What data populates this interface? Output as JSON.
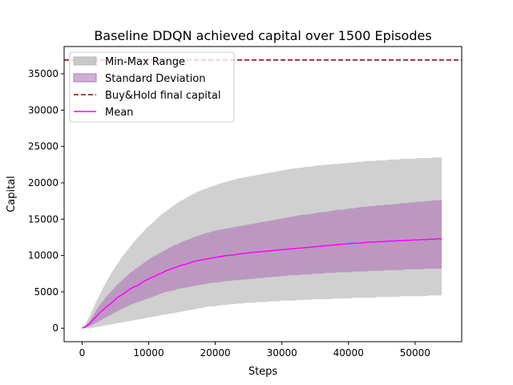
{
  "chart_data": {
    "type": "area",
    "title": "Baseline DDQN achieved capital over 1500 Episodes",
    "xlabel": "Steps",
    "ylabel": "Capital",
    "xlim": [
      -2700,
      57000
    ],
    "ylim": [
      -1850,
      38750
    ],
    "xticks": [
      0,
      10000,
      20000,
      30000,
      40000,
      50000
    ],
    "yticks": [
      0,
      5000,
      10000,
      15000,
      20000,
      25000,
      30000,
      35000
    ],
    "grid": false,
    "legend_position": "top-left",
    "colors": {
      "minmax": "#c8c8c8",
      "std": "#b07ab8",
      "mean": "#ff00ff",
      "buyhold": "#8b0000"
    },
    "buy_hold_final_capital": 36900,
    "x_step": 600,
    "series": [
      {
        "name": "Mean",
        "x_start": 0,
        "values": [
          0,
          250,
          700,
          1300,
          1900,
          2400,
          2900,
          3300,
          3800,
          4300,
          4600,
          5000,
          5400,
          5700,
          5900,
          6300,
          6600,
          6900,
          7100,
          7400,
          7600,
          7900,
          8100,
          8300,
          8500,
          8700,
          8800,
          9000,
          9200,
          9300,
          9400,
          9500,
          9600,
          9700,
          9800,
          9900,
          10000,
          10050,
          10100,
          10200,
          10250,
          10300,
          10400,
          10450,
          10500,
          10550,
          10600,
          10650,
          10700,
          10750,
          10800,
          10850,
          10900,
          10950,
          11000,
          11050,
          11100,
          11150,
          11200,
          11250,
          11300,
          11350,
          11400,
          11450,
          11500,
          11550,
          11600,
          11650,
          11700,
          11700,
          11750,
          11800,
          11850,
          11850,
          11900,
          11900,
          11950,
          12000,
          12000,
          12050,
          12050,
          12100,
          12100,
          12150,
          12150,
          12200,
          12200,
          12250,
          12250,
          12300,
          12300
        ]
      },
      {
        "name": "Standard Deviation",
        "x_start": 0,
        "lower": [
          0,
          100,
          300,
          600,
          900,
          1200,
          1500,
          1800,
          2100,
          2400,
          2700,
          2900,
          3200,
          3400,
          3600,
          3800,
          4000,
          4200,
          4400,
          4600,
          4800,
          5000,
          5100,
          5200,
          5400,
          5500,
          5600,
          5700,
          5800,
          5900,
          6000,
          6100,
          6200,
          6300,
          6300,
          6400,
          6500,
          6500,
          6600,
          6600,
          6700,
          6700,
          6800,
          6800,
          6900,
          6900,
          7000,
          7000,
          7100,
          7100,
          7200,
          7200,
          7300,
          7300,
          7300,
          7400,
          7400,
          7400,
          7500,
          7500,
          7500,
          7600,
          7600,
          7600,
          7700,
          7700,
          7700,
          7700,
          7800,
          7800,
          7800,
          7800,
          7900,
          7900,
          7900,
          7900,
          8000,
          8000,
          8000,
          8000,
          8000,
          8100,
          8100,
          8100,
          8100,
          8100,
          8200,
          8200,
          8200,
          8200,
          8200
        ],
        "upper": [
          0,
          400,
          1100,
          2000,
          2900,
          3600,
          4300,
          4900,
          5500,
          6100,
          6600,
          7100,
          7600,
          8000,
          8400,
          8800,
          9200,
          9600,
          9900,
          10200,
          10500,
          10800,
          11100,
          11400,
          11600,
          11900,
          12100,
          12300,
          12500,
          12700,
          12900,
          13100,
          13200,
          13400,
          13500,
          13600,
          13700,
          13800,
          13900,
          14000,
          14100,
          14200,
          14300,
          14400,
          14500,
          14600,
          14700,
          14800,
          14900,
          15000,
          15100,
          15200,
          15300,
          15400,
          15500,
          15600,
          15600,
          15700,
          15800,
          15900,
          16000,
          16000,
          16100,
          16200,
          16300,
          16300,
          16400,
          16500,
          16500,
          16600,
          16700,
          16700,
          16800,
          16800,
          16900,
          16900,
          17000,
          17000,
          17100,
          17100,
          17200,
          17200,
          17300,
          17300,
          17400,
          17400,
          17500,
          17500,
          17600,
          17600,
          17700
        ]
      },
      {
        "name": "Min-Max Range",
        "x_start": 0,
        "lower": [
          0,
          0,
          0,
          100,
          200,
          300,
          400,
          500,
          600,
          700,
          800,
          900,
          1000,
          1100,
          1200,
          1300,
          1400,
          1500,
          1600,
          1700,
          1800,
          1900,
          2000,
          2100,
          2200,
          2300,
          2400,
          2500,
          2600,
          2700,
          2800,
          2900,
          3000,
          3000,
          3100,
          3200,
          3200,
          3300,
          3300,
          3400,
          3400,
          3500,
          3500,
          3500,
          3600,
          3600,
          3600,
          3700,
          3700,
          3700,
          3800,
          3800,
          3800,
          3800,
          3900,
          3900,
          3900,
          3900,
          4000,
          4000,
          4000,
          4000,
          4000,
          4100,
          4100,
          4100,
          4100,
          4100,
          4200,
          4200,
          4200,
          4200,
          4200,
          4200,
          4300,
          4300,
          4300,
          4300,
          4300,
          4300,
          4400,
          4400,
          4400,
          4400,
          4400,
          4400,
          4400,
          4500,
          4500,
          4500,
          4500
        ],
        "upper": [
          0,
          700,
          1800,
          3000,
          4200,
          5300,
          6300,
          7300,
          8200,
          9000,
          9800,
          10500,
          11200,
          11900,
          12500,
          13100,
          13700,
          14200,
          14700,
          15200,
          15700,
          16100,
          16500,
          16900,
          17300,
          17600,
          17900,
          18200,
          18500,
          18800,
          19000,
          19200,
          19400,
          19600,
          19800,
          20000,
          20100,
          20300,
          20400,
          20600,
          20700,
          20800,
          20900,
          21000,
          21100,
          21200,
          21300,
          21400,
          21500,
          21600,
          21700,
          21800,
          21900,
          22000,
          22000,
          22100,
          22200,
          22200,
          22300,
          22400,
          22400,
          22500,
          22500,
          22600,
          22600,
          22700,
          22700,
          22800,
          22800,
          22900,
          22900,
          23000,
          23000,
          23000,
          23100,
          23100,
          23100,
          23200,
          23200,
          23200,
          23300,
          23300,
          23300,
          23300,
          23400,
          23400,
          23400,
          23400,
          23500,
          23500,
          23500
        ]
      },
      {
        "name": "Buy&Hold final capital",
        "value": 36900
      }
    ]
  }
}
